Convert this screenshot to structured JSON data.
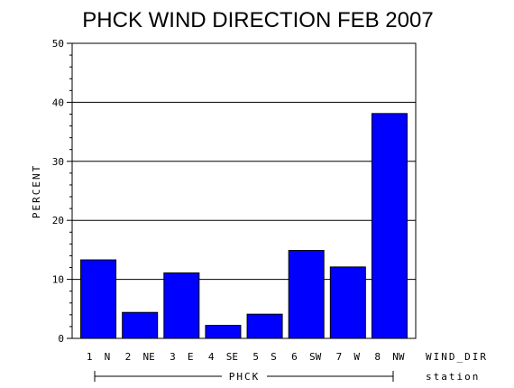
{
  "chart_data": {
    "type": "bar",
    "title": "PHCK WIND DIRECTION FEB 2007",
    "ylabel": "PERCENT",
    "xlabel": "WIND_DIR",
    "group_label": "PHCK",
    "group_axis_label": "station",
    "categories": [
      "1 N",
      "2 NE",
      "3 E",
      "4 SE",
      "5 S",
      "6 SW",
      "7 W",
      "8 NW"
    ],
    "values": [
      13.3,
      4.4,
      11.1,
      2.2,
      4.1,
      14.9,
      12.1,
      38.1
    ],
    "ylim": [
      0,
      50
    ],
    "yticks": [
      "0",
      "10",
      "20",
      "30",
      "40",
      "50"
    ],
    "grid": true,
    "colors": {
      "bar": "#0000ff"
    }
  }
}
